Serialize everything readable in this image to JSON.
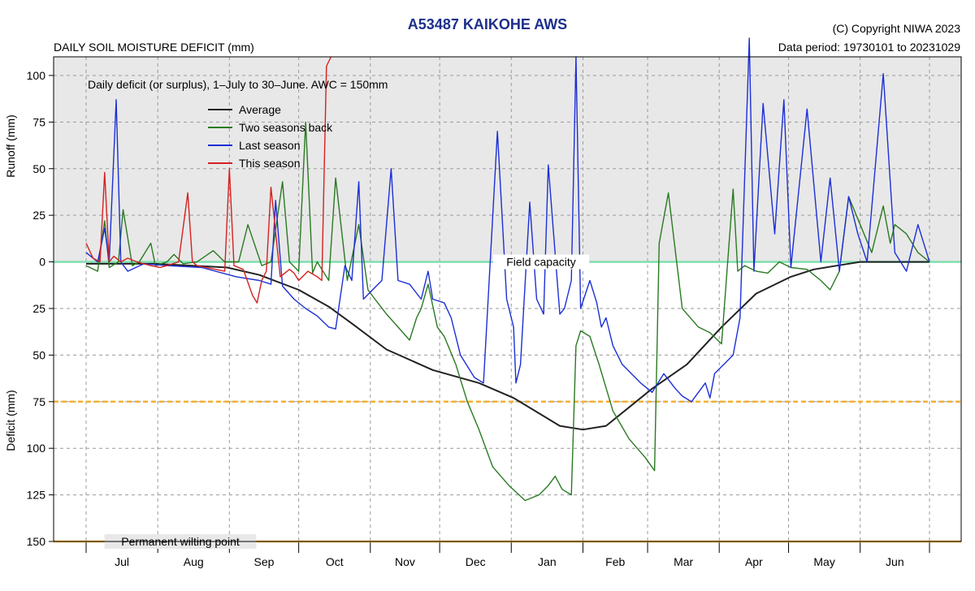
{
  "header": {
    "title": "A53487  KAIKOHE AWS",
    "subtitle": "DAILY SOIL MOISTURE DEFICIT (mm)",
    "copyright": "(C) Copyright NIWA  2023",
    "data_period": "Data period:  19730101  to  20231029"
  },
  "chart_data": {
    "type": "line",
    "title": "A53487  KAIKOHE AWS",
    "ylabel_top": "Runoff (mm)",
    "ylabel_bottom": "Deficit (mm)",
    "annotation": "Daily deficit (or surplus), 1–July to 30–June.  AWC = 150mm",
    "legend_position": "top-left",
    "grid": true,
    "xlim": [
      0,
      365
    ],
    "ylim": [
      -110,
      150
    ],
    "y_ticks": [
      -100,
      -75,
      -50,
      -25,
      0,
      25,
      50,
      75,
      100,
      125,
      150
    ],
    "y_tick_labels": [
      "100",
      "75",
      "50",
      "25",
      "0",
      "25",
      "50",
      "75",
      "100",
      "125",
      "150"
    ],
    "month_labels": [
      "Jul",
      "Aug",
      "Sep",
      "Oct",
      "Nov",
      "Dec",
      "Jan",
      "Feb",
      "Mar",
      "Apr",
      "May",
      "Jun"
    ],
    "month_starts": [
      0,
      31,
      62,
      92,
      123,
      153,
      184,
      215,
      243,
      274,
      304,
      335
    ],
    "reference_lines": [
      {
        "label": "Field capacity",
        "y": 0,
        "color": "#7fe0b0"
      },
      {
        "label": "",
        "y": 75,
        "color": "#f2b233",
        "dashed": true
      },
      {
        "label": "Permanent wilting point",
        "y": 150,
        "color": "#f2b233"
      }
    ],
    "series": [
      {
        "name": "Average",
        "color": "#222222",
        "x": [
          0,
          30,
          61,
          75,
          92,
          105,
          115,
          130,
          150,
          170,
          185,
          205,
          215,
          225,
          235,
          245,
          260,
          275,
          290,
          305,
          315,
          325,
          335,
          365
        ],
        "y": [
          1,
          1,
          3,
          7,
          15,
          24,
          33,
          47,
          58,
          65,
          73,
          88,
          90,
          88,
          78,
          68,
          55,
          35,
          17,
          8,
          4,
          2,
          0,
          0
        ]
      },
      {
        "name": "Two seasons back",
        "color": "#2a7a22",
        "x": [
          0,
          5,
          8,
          10,
          14,
          16,
          20,
          23,
          28,
          30,
          35,
          38,
          42,
          48,
          55,
          60,
          66,
          70,
          76,
          80,
          85,
          88,
          92,
          95,
          98,
          100,
          105,
          108,
          113,
          118,
          122,
          125,
          130,
          135,
          140,
          143,
          145,
          148,
          152,
          155,
          160,
          165,
          170,
          176,
          183,
          190,
          196,
          200,
          203,
          206,
          210,
          212,
          214,
          218,
          222,
          228,
          235,
          242,
          246,
          248,
          252,
          258,
          265,
          270,
          275,
          280,
          282,
          285,
          290,
          295,
          300,
          305,
          312,
          318,
          322,
          326,
          330,
          335,
          340,
          345,
          348,
          350,
          355,
          360,
          365
        ],
        "y": [
          2,
          5,
          -22,
          3,
          0,
          -28,
          2,
          0,
          -10,
          2,
          0,
          -4,
          1,
          0,
          -6,
          0,
          0,
          -20,
          2,
          0,
          -43,
          0,
          5,
          -75,
          6,
          0,
          10,
          -45,
          10,
          -20,
          15,
          20,
          28,
          35,
          42,
          30,
          25,
          12,
          35,
          40,
          55,
          75,
          90,
          110,
          120,
          128,
          125,
          120,
          115,
          122,
          125,
          45,
          37,
          40,
          55,
          80,
          95,
          105,
          112,
          -10,
          -37,
          25,
          35,
          38,
          44,
          -39,
          5,
          2,
          5,
          6,
          0,
          3,
          4,
          10,
          15,
          5,
          -35,
          -20,
          -5,
          -30,
          -10,
          -20,
          -15,
          -5,
          0
        ]
      },
      {
        "name": "Last season",
        "color": "#1c2fd6",
        "x": [
          0,
          5,
          8,
          10,
          13,
          15,
          18,
          25,
          35,
          50,
          65,
          75,
          80,
          82,
          85,
          90,
          95,
          100,
          105,
          108,
          112,
          115,
          118,
          120,
          124,
          128,
          132,
          135,
          140,
          145,
          148,
          150,
          155,
          158,
          162,
          168,
          172,
          178,
          182,
          185,
          186,
          188,
          192,
          195,
          198,
          200,
          205,
          207,
          210,
          212,
          214,
          218,
          221,
          223,
          225,
          228,
          232,
          236,
          240,
          245,
          250,
          255,
          258,
          262,
          265,
          268,
          270,
          272,
          276,
          280,
          283,
          287,
          289,
          293,
          298,
          302,
          305,
          312,
          318,
          322,
          326,
          330,
          334,
          338,
          345,
          350,
          355,
          360,
          365
        ],
        "y": [
          -5,
          0,
          -18,
          0,
          -87,
          0,
          5,
          1,
          2,
          3,
          8,
          10,
          12,
          -33,
          13,
          20,
          25,
          29,
          35,
          36,
          2,
          10,
          -43,
          20,
          15,
          10,
          -50,
          10,
          12,
          20,
          5,
          20,
          22,
          30,
          50,
          62,
          65,
          -70,
          20,
          35,
          65,
          55,
          -32,
          20,
          28,
          -52,
          28,
          25,
          10,
          -110,
          25,
          10,
          22,
          35,
          30,
          45,
          55,
          60,
          65,
          70,
          60,
          68,
          72,
          75,
          70,
          65,
          73,
          60,
          55,
          50,
          30,
          -120,
          5,
          -85,
          -15,
          -87,
          3,
          -82,
          0,
          -45,
          5,
          -35,
          -15,
          0,
          -101,
          -5,
          5,
          -20,
          0
        ]
      },
      {
        "name": "This season",
        "color": "#d62020",
        "x": [
          0,
          3,
          6,
          8,
          10,
          12,
          15,
          18,
          22,
          25,
          28,
          32,
          35,
          40,
          44,
          46,
          48,
          52,
          56,
          60,
          62,
          64,
          68,
          72,
          74,
          76,
          78,
          80,
          84,
          88,
          90,
          92,
          96,
          100,
          102,
          104,
          106
        ],
        "y": [
          -10,
          -2,
          0,
          -48,
          0,
          -3,
          0,
          -2,
          0,
          1,
          2,
          3,
          2,
          0,
          -37,
          0,
          2,
          3,
          4,
          5,
          -50,
          2,
          4,
          18,
          22,
          10,
          5,
          -40,
          8,
          4,
          6,
          10,
          5,
          8,
          10,
          -105,
          -110
        ]
      }
    ]
  }
}
